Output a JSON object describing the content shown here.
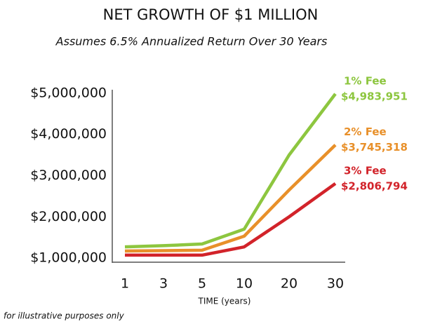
{
  "chart_data": {
    "type": "line",
    "title": "NET GROWTH OF $1 MILLION",
    "subtitle": "Assumes 6.5% Annualized Return Over 30 Years",
    "x_label": "TIME (years)",
    "note": "for illustrative purposes only",
    "categories": [
      "1",
      "3",
      "5",
      "10",
      "20",
      "30"
    ],
    "series": [
      {
        "name": "1% Fee",
        "color": "#8dc63f",
        "values": [
          1270000,
          1300000,
          1340000,
          1700000,
          3500000,
          4983951
        ],
        "value_labels": [
          null,
          null,
          null,
          null,
          null,
          "$4,983,951"
        ]
      },
      {
        "name": "2% Fee",
        "color": "#e8902a",
        "values": [
          1170000,
          1180000,
          1190000,
          1530000,
          2650000,
          3745318
        ],
        "value_labels": [
          null,
          null,
          null,
          null,
          null,
          "$3,745,318"
        ]
      },
      {
        "name": "3% Fee",
        "color": "#d2232a",
        "values": [
          1070000,
          1070000,
          1070000,
          1270000,
          2000000,
          2806794
        ],
        "value_labels": [
          null,
          null,
          null,
          null,
          null,
          "$2,806,794"
        ]
      }
    ],
    "ylim": [
      900000,
      5100000
    ],
    "yticks": [
      {
        "value": 1000000,
        "label": "$1,000,000"
      },
      {
        "value": 2000000,
        "label": "$2,000,000"
      },
      {
        "value": 3000000,
        "label": "$3,000,000"
      },
      {
        "value": 4000000,
        "label": "$4,000,000"
      },
      {
        "value": 5000000,
        "label": "$5,000,000"
      }
    ]
  }
}
